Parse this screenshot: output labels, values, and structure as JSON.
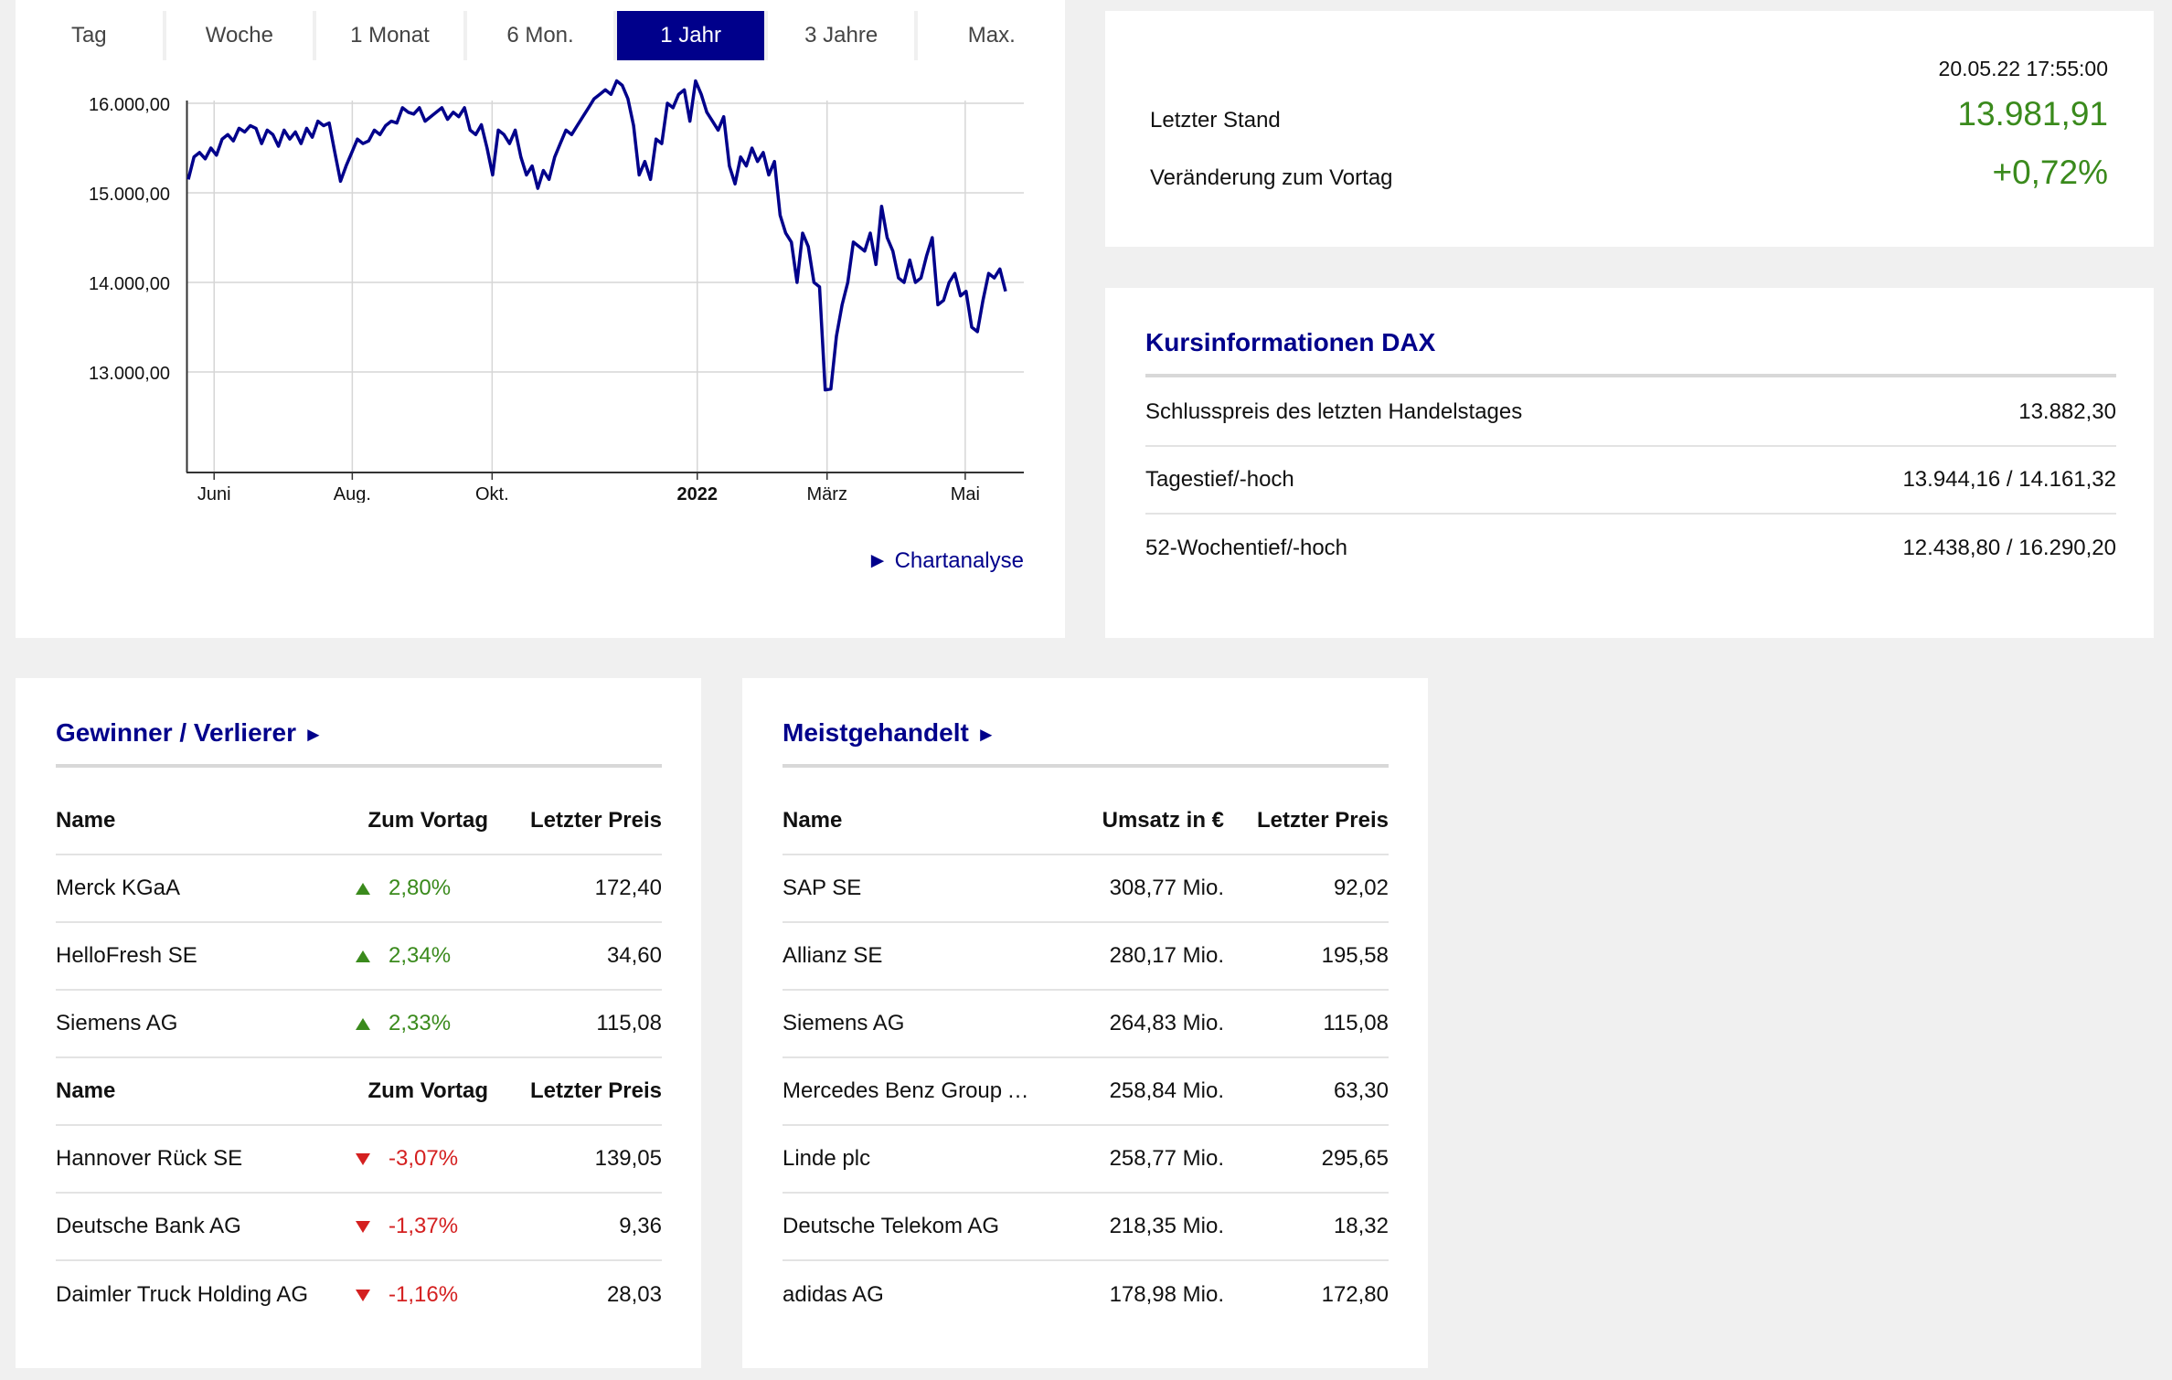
{
  "tabs": [
    {
      "label": "Tag",
      "active": false
    },
    {
      "label": "Woche",
      "active": false
    },
    {
      "label": "1 Monat",
      "active": false
    },
    {
      "label": "6 Mon.",
      "active": false
    },
    {
      "label": "1 Jahr",
      "active": true
    },
    {
      "label": "3 Jahre",
      "active": false
    },
    {
      "label": "Max.",
      "active": false
    }
  ],
  "chart_link": "► Chartanalyse",
  "chart_data": {
    "type": "line",
    "color": "#00008b",
    "ylim": [
      12438.8,
      16290.2
    ],
    "yticks": [
      {
        "value": 13000,
        "label": "13.000,00"
      },
      {
        "value": 14000,
        "label": "14.000,00"
      },
      {
        "value": 15000,
        "label": "15.000,00"
      },
      {
        "value": 16000,
        "label": "16.000,00"
      }
    ],
    "xticks": [
      {
        "label": "Juni",
        "bold": false,
        "pos": 0.033
      },
      {
        "label": "Aug.",
        "bold": false,
        "pos": 0.198
      },
      {
        "label": "Okt.",
        "bold": false,
        "pos": 0.365
      },
      {
        "label": "2022",
        "bold": true,
        "pos": 0.61
      },
      {
        "label": "März",
        "bold": false,
        "pos": 0.765
      },
      {
        "label": "Mai",
        "bold": false,
        "pos": 0.93
      }
    ],
    "series": [
      {
        "values": [
          15150,
          15400,
          15450,
          15380,
          15500,
          15420,
          15600,
          15650,
          15580,
          15720,
          15680,
          15750,
          15720,
          15550,
          15700,
          15650,
          15520,
          15700,
          15600,
          15680,
          15550,
          15720,
          15620,
          15800,
          15750,
          15780,
          15450,
          15130,
          15300,
          15450,
          15600,
          15550,
          15580,
          15700,
          15650,
          15750,
          15800,
          15780,
          15950,
          15900,
          15880,
          15950,
          15800,
          15850,
          15900,
          15950,
          15820,
          15900,
          15850,
          15950,
          15700,
          15650,
          15760,
          15500,
          15200,
          15700,
          15650,
          15550,
          15700,
          15400,
          15200,
          15300,
          15050,
          15250,
          15150,
          15400,
          15550,
          15700,
          15650,
          15750,
          15850,
          15950,
          16050,
          16100,
          16150,
          16100,
          16250,
          16200,
          16050,
          15750,
          15200,
          15350,
          15150,
          15600,
          15550,
          16000,
          15950,
          16100,
          16150,
          15800,
          16250,
          16100,
          15900,
          15800,
          15700,
          15850,
          15300,
          15100,
          15400,
          15300,
          15500,
          15350,
          15450,
          15200,
          15350,
          14750,
          14550,
          14450,
          14000,
          14550,
          14400,
          14000,
          13950,
          12800,
          12810,
          13400,
          13750,
          14000,
          14450,
          14400,
          14350,
          14550,
          14200,
          14850,
          14500,
          14350,
          14050,
          14000,
          14250,
          14000,
          14050,
          14300,
          14500,
          13750,
          13800,
          14000,
          14100,
          13850,
          13900,
          13500,
          13450,
          13800,
          14100,
          14050,
          14150,
          13900
        ]
      }
    ]
  },
  "quote": {
    "datetime": "20.05.22 17:55:00",
    "last_label": "Letzter Stand",
    "last_value": "13.981,91",
    "change_label": "Veränderung zum Vortag",
    "change_value": "+0,72%"
  },
  "info": {
    "title": "Kursinformationen DAX",
    "rows": [
      {
        "label": "Schlusspreis des letzten Handelstages",
        "value": "13.882,30"
      },
      {
        "label": "Tagestief/-hoch",
        "value": "13.944,16 / 14.161,32"
      },
      {
        "label": "52-Wochentief/-hoch",
        "value": "12.438,80 / 16.290,20"
      }
    ]
  },
  "gainers": {
    "title": "Gewinner / Verlierer",
    "arrow": "►",
    "header": {
      "name": "Name",
      "change": "Zum Vortag",
      "price": "Letzter Preis"
    },
    "up": [
      {
        "name": "Merck KGaA",
        "change": "2,80%",
        "price": "172,40"
      },
      {
        "name": "HelloFresh SE",
        "change": "2,34%",
        "price": "34,60"
      },
      {
        "name": "Siemens AG",
        "change": "2,33%",
        "price": "115,08"
      }
    ],
    "down": [
      {
        "name": "Hannover Rück SE",
        "change": "-3,07%",
        "price": "139,05"
      },
      {
        "name": "Deutsche Bank AG",
        "change": "-1,37%",
        "price": "9,36"
      },
      {
        "name": "Daimler Truck Holding AG",
        "change": "-1,16%",
        "price": "28,03"
      }
    ]
  },
  "traded": {
    "title": "Meistgehandelt",
    "arrow": "►",
    "header": {
      "name": "Name",
      "turnover": "Umsatz in €",
      "price": "Letzter Preis"
    },
    "rows": [
      {
        "name": "SAP SE",
        "turnover": "308,77 Mio.",
        "price": "92,02"
      },
      {
        "name": "Allianz SE",
        "turnover": "280,17 Mio.",
        "price": "195,58"
      },
      {
        "name": "Siemens AG",
        "turnover": "264,83 Mio.",
        "price": "115,08"
      },
      {
        "name": "Mercedes Benz Group AG…",
        "turnover": "258,84 Mio.",
        "price": "63,30"
      },
      {
        "name": "Linde plc",
        "turnover": "258,77 Mio.",
        "price": "295,65"
      },
      {
        "name": "Deutsche Telekom AG",
        "turnover": "218,35 Mio.",
        "price": "18,32"
      },
      {
        "name": "adidas AG",
        "turnover": "178,98 Mio.",
        "price": "172,80"
      }
    ]
  }
}
